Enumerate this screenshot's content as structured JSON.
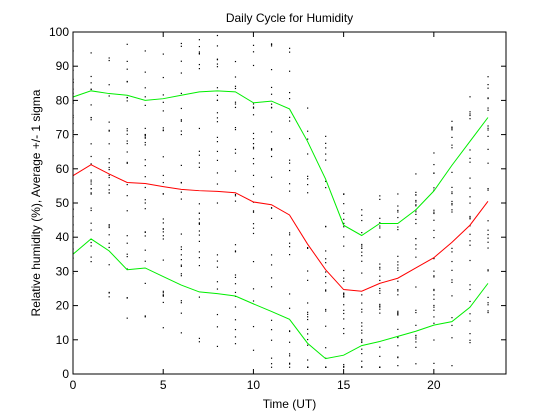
{
  "chart_data": {
    "type": "line",
    "title": "Daily Cycle for Humidity",
    "xlabel": "Time (UT)",
    "ylabel": "Relative humidity (%), Average +/- 1 sigma",
    "xlim": [
      0,
      24
    ],
    "ylim": [
      0,
      100
    ],
    "xticks": [
      0,
      5,
      10,
      15,
      20
    ],
    "yticks": [
      0,
      10,
      20,
      30,
      40,
      50,
      60,
      70,
      80,
      90,
      100
    ],
    "grid": false,
    "legend": "none",
    "x": [
      0,
      1,
      2,
      3,
      4,
      5,
      6,
      7,
      8,
      9,
      10,
      11,
      12,
      13,
      14,
      15,
      16,
      17,
      18,
      19,
      20,
      21,
      22,
      23
    ],
    "series": [
      {
        "color": "#ff0000",
        "values": [
          58,
          61.2,
          58.5,
          56,
          55.7,
          54.8,
          54,
          53.6,
          53.4,
          53,
          50.3,
          49.5,
          46.5,
          38,
          30.5,
          24.7,
          24.2,
          26.5,
          28,
          31,
          34,
          38.5,
          43.5,
          50.5
        ]
      },
      {
        "color": "#00ee00",
        "values": [
          81,
          82.8,
          82,
          81.5,
          80,
          80.5,
          81.5,
          82.5,
          82.8,
          82.5,
          79.3,
          79.8,
          77.5,
          68,
          57,
          43.5,
          40.5,
          44,
          44,
          48,
          53.5,
          61,
          68,
          75
        ]
      },
      {
        "color": "#00ee00",
        "values": [
          35,
          39.5,
          36,
          30.5,
          31,
          28.5,
          26,
          24,
          23.5,
          22.8,
          20.5,
          18.3,
          16,
          9,
          4.5,
          5.5,
          8.3,
          9.5,
          11,
          12.5,
          14.3,
          15.3,
          19.5,
          26.5
        ]
      }
    ],
    "scatter_note": "individual hourly observations shown as small black dots"
  }
}
